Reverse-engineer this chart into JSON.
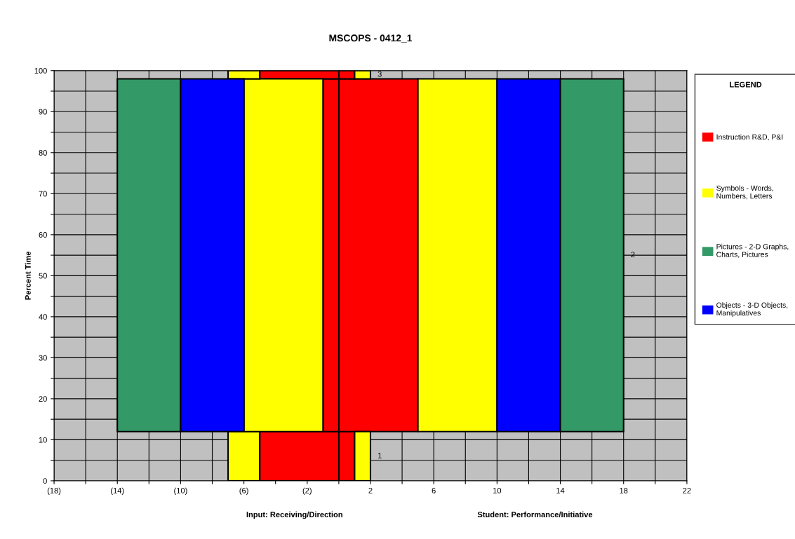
{
  "chart_data": {
    "type": "bar",
    "orientation": "horizontal",
    "title": "MSCOPS - 0412_1",
    "ylabel": "Percent Time",
    "x": [
      6,
      55,
      99
    ],
    "series": [
      {
        "name": "Instruction R&D, P&I",
        "color": "#ff0000",
        "base": [
          -5,
          -1,
          -5
        ],
        "values": [
          6,
          6,
          6
        ]
      },
      {
        "name": "Symbols - Words,\nNumbers, Letters",
        "color": "#ffff00",
        "base": [
          -7,
          -6,
          -7
        ],
        "values": [
          2,
          5,
          2
        ]
      },
      {
        "name": "Pictures - 2-D Graphs,\nCharts, Pictures",
        "color": "#339966",
        "base": [
          null,
          -14,
          null
        ],
        "values": [
          null,
          4,
          null
        ]
      },
      {
        "name": "Objects - 3-D Objects,\nManipulatives",
        "color": "#0000ff",
        "base": [
          null,
          -10,
          null
        ],
        "values": [
          null,
          4,
          null
        ]
      },
      {
        "color": "#ffff00",
        "base": [
          1,
          5,
          1
        ],
        "values": [
          1,
          5,
          1
        ]
      },
      {
        "color": "#0000ff",
        "base": [
          null,
          10,
          null
        ],
        "values": [
          null,
          4,
          null
        ]
      },
      {
        "color": "#339966",
        "base": [
          null,
          14,
          null
        ],
        "values": [
          null,
          4,
          null
        ]
      }
    ],
    "xlim": [
      -18,
      22
    ],
    "xticks": [
      {
        "value": -18,
        "label": "(18)"
      },
      {
        "value": -16,
        "label": null
      },
      {
        "value": -14,
        "label": "(14)"
      },
      {
        "value": -12,
        "label": null
      },
      {
        "value": -10,
        "label": "(10)"
      },
      {
        "value": -8,
        "label": null
      },
      {
        "value": -6,
        "label": "(6)"
      },
      {
        "value": -4,
        "label": null
      },
      {
        "value": -2,
        "label": "(2)"
      },
      {
        "value": 0,
        "label": null
      },
      2,
      {
        "value": 4,
        "label": null
      },
      6,
      {
        "value": 8,
        "label": null
      },
      10,
      {
        "value": 12,
        "label": null
      },
      14,
      {
        "value": 16,
        "label": null
      },
      18,
      {
        "value": 20,
        "label": null
      },
      22
    ],
    "ylim": [
      0,
      100
    ],
    "yticks": [
      0,
      {
        "value": 5,
        "label": null
      },
      10,
      {
        "value": 15,
        "label": null
      },
      20,
      {
        "value": 25,
        "label": null
      },
      30,
      {
        "value": 35,
        "label": null
      },
      40,
      {
        "value": 45,
        "label": null
      },
      50,
      {
        "value": 55,
        "label": null
      },
      60,
      {
        "value": 65,
        "label": null
      },
      70,
      {
        "value": 75,
        "label": null
      },
      80,
      {
        "value": 85,
        "label": null
      },
      90,
      {
        "value": 95,
        "label": null
      },
      100
    ],
    "ref_lines": [
      {
        "axis": "x",
        "value": 0,
        "color": "#000000"
      }
    ],
    "annotations": [
      "1",
      "2",
      "3",
      "Input: Receiving/Direction",
      "Student: Performance/Initiative"
    ],
    "grid": true,
    "legend": "right",
    "legend_title": "LEGEND"
  }
}
